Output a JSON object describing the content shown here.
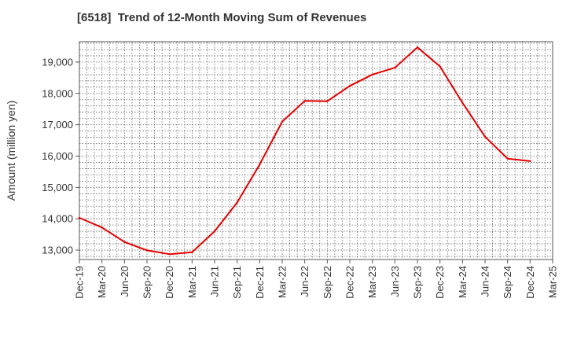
{
  "chart_data": {
    "type": "line",
    "title": "[6518]  Trend of 12-Month Moving Sum of Revenues",
    "ylabel": "Amount (million yen)",
    "xlabel": "",
    "ylim": [
      12700,
      19650
    ],
    "yticks": [
      "13,000",
      "14,000",
      "15,000",
      "16,000",
      "17,000",
      "18,000",
      "19,000"
    ],
    "ytick_values": [
      13000,
      14000,
      15000,
      16000,
      17000,
      18000,
      19000
    ],
    "categories": [
      "Dec-19",
      "Mar-20",
      "Jun-20",
      "Sep-20",
      "Dec-20",
      "Mar-21",
      "Jun-21",
      "Sep-21",
      "Dec-21",
      "Mar-22",
      "Jun-22",
      "Sep-22",
      "Dec-22",
      "Mar-23",
      "Jun-23",
      "Sep-23",
      "Dec-23",
      "Mar-24",
      "Jun-24",
      "Sep-24",
      "Dec-24",
      "Mar-25"
    ],
    "grid": true,
    "series": [
      {
        "color": "#e60000",
        "values": [
          14030,
          13720,
          13260,
          12990,
          12870,
          12930,
          13600,
          14520,
          15730,
          17100,
          17760,
          17750,
          18240,
          18600,
          18820,
          19470,
          18860,
          17700,
          16620,
          15920,
          15840,
          null
        ]
      }
    ]
  }
}
